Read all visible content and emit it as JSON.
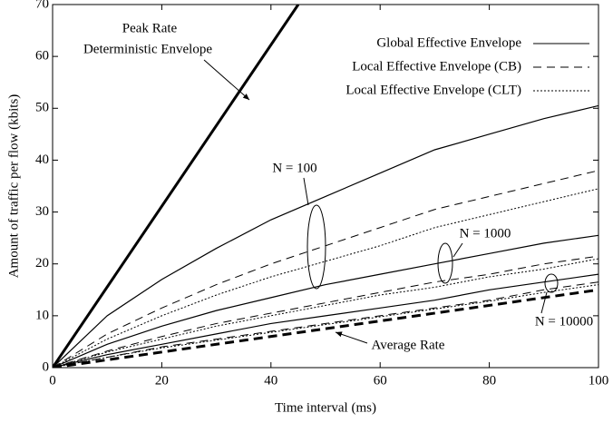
{
  "chart_data": {
    "type": "line",
    "xlabel": "Time interval (ms)",
    "ylabel": "Amount of traffic per flow (kbits)",
    "xlim": [
      0,
      100
    ],
    "ylim": [
      0,
      70
    ],
    "xticks": [
      0,
      20,
      40,
      60,
      80,
      100
    ],
    "yticks": [
      0,
      10,
      20,
      30,
      40,
      50,
      60,
      70
    ],
    "x": [
      0,
      10,
      20,
      30,
      40,
      50,
      60,
      70,
      80,
      90,
      100
    ],
    "legend": [
      {
        "name": "Global Effective Envelope",
        "dash": "none"
      },
      {
        "name": "Local Effective Envelope (CB)",
        "dash": "9,6"
      },
      {
        "name": "Local Effective Envelope (CLT)",
        "dash": "2,2"
      }
    ],
    "groups": [
      {
        "label": "N = 100",
        "lines": [
          [
            0,
            10,
            17,
            23,
            28.5,
            33,
            37.5,
            42,
            45,
            48,
            50.5
          ],
          [
            0,
            6.5,
            11.5,
            16,
            20,
            23.5,
            27,
            30.5,
            33,
            35.5,
            38
          ],
          [
            0,
            5.5,
            10,
            14,
            17.5,
            20.5,
            23.5,
            27,
            29.5,
            32,
            34.5
          ]
        ]
      },
      {
        "label": "N = 1000",
        "lines": [
          [
            0,
            4.5,
            8,
            11,
            13.5,
            16,
            18,
            20,
            22,
            24,
            25.5
          ],
          [
            0,
            3.2,
            6,
            8.5,
            10.5,
            12.5,
            14.5,
            16.5,
            18,
            20,
            21.5
          ],
          [
            0,
            3,
            5.5,
            8,
            10,
            12,
            14,
            15.5,
            17.5,
            19,
            21
          ]
        ]
      },
      {
        "label": "N = 10000",
        "lines": [
          [
            0,
            2.5,
            4.5,
            6.5,
            8.5,
            10,
            11.5,
            13,
            15,
            16.5,
            18
          ],
          [
            0,
            2,
            4,
            5.5,
            7,
            8.5,
            10,
            11.5,
            13,
            15,
            16.5
          ],
          [
            0,
            2,
            3.8,
            5.3,
            6.8,
            8.3,
            9.8,
            11.3,
            12.8,
            14.5,
            16
          ]
        ]
      }
    ],
    "peak_rate": {
      "labels": [
        "Peak Rate",
        "Deterministic Envelope"
      ],
      "x": [
        0,
        45
      ],
      "values": [
        0,
        70
      ]
    },
    "average_rate": {
      "label": "Average Rate",
      "x": [
        0,
        100
      ],
      "values": [
        0,
        15
      ]
    }
  }
}
